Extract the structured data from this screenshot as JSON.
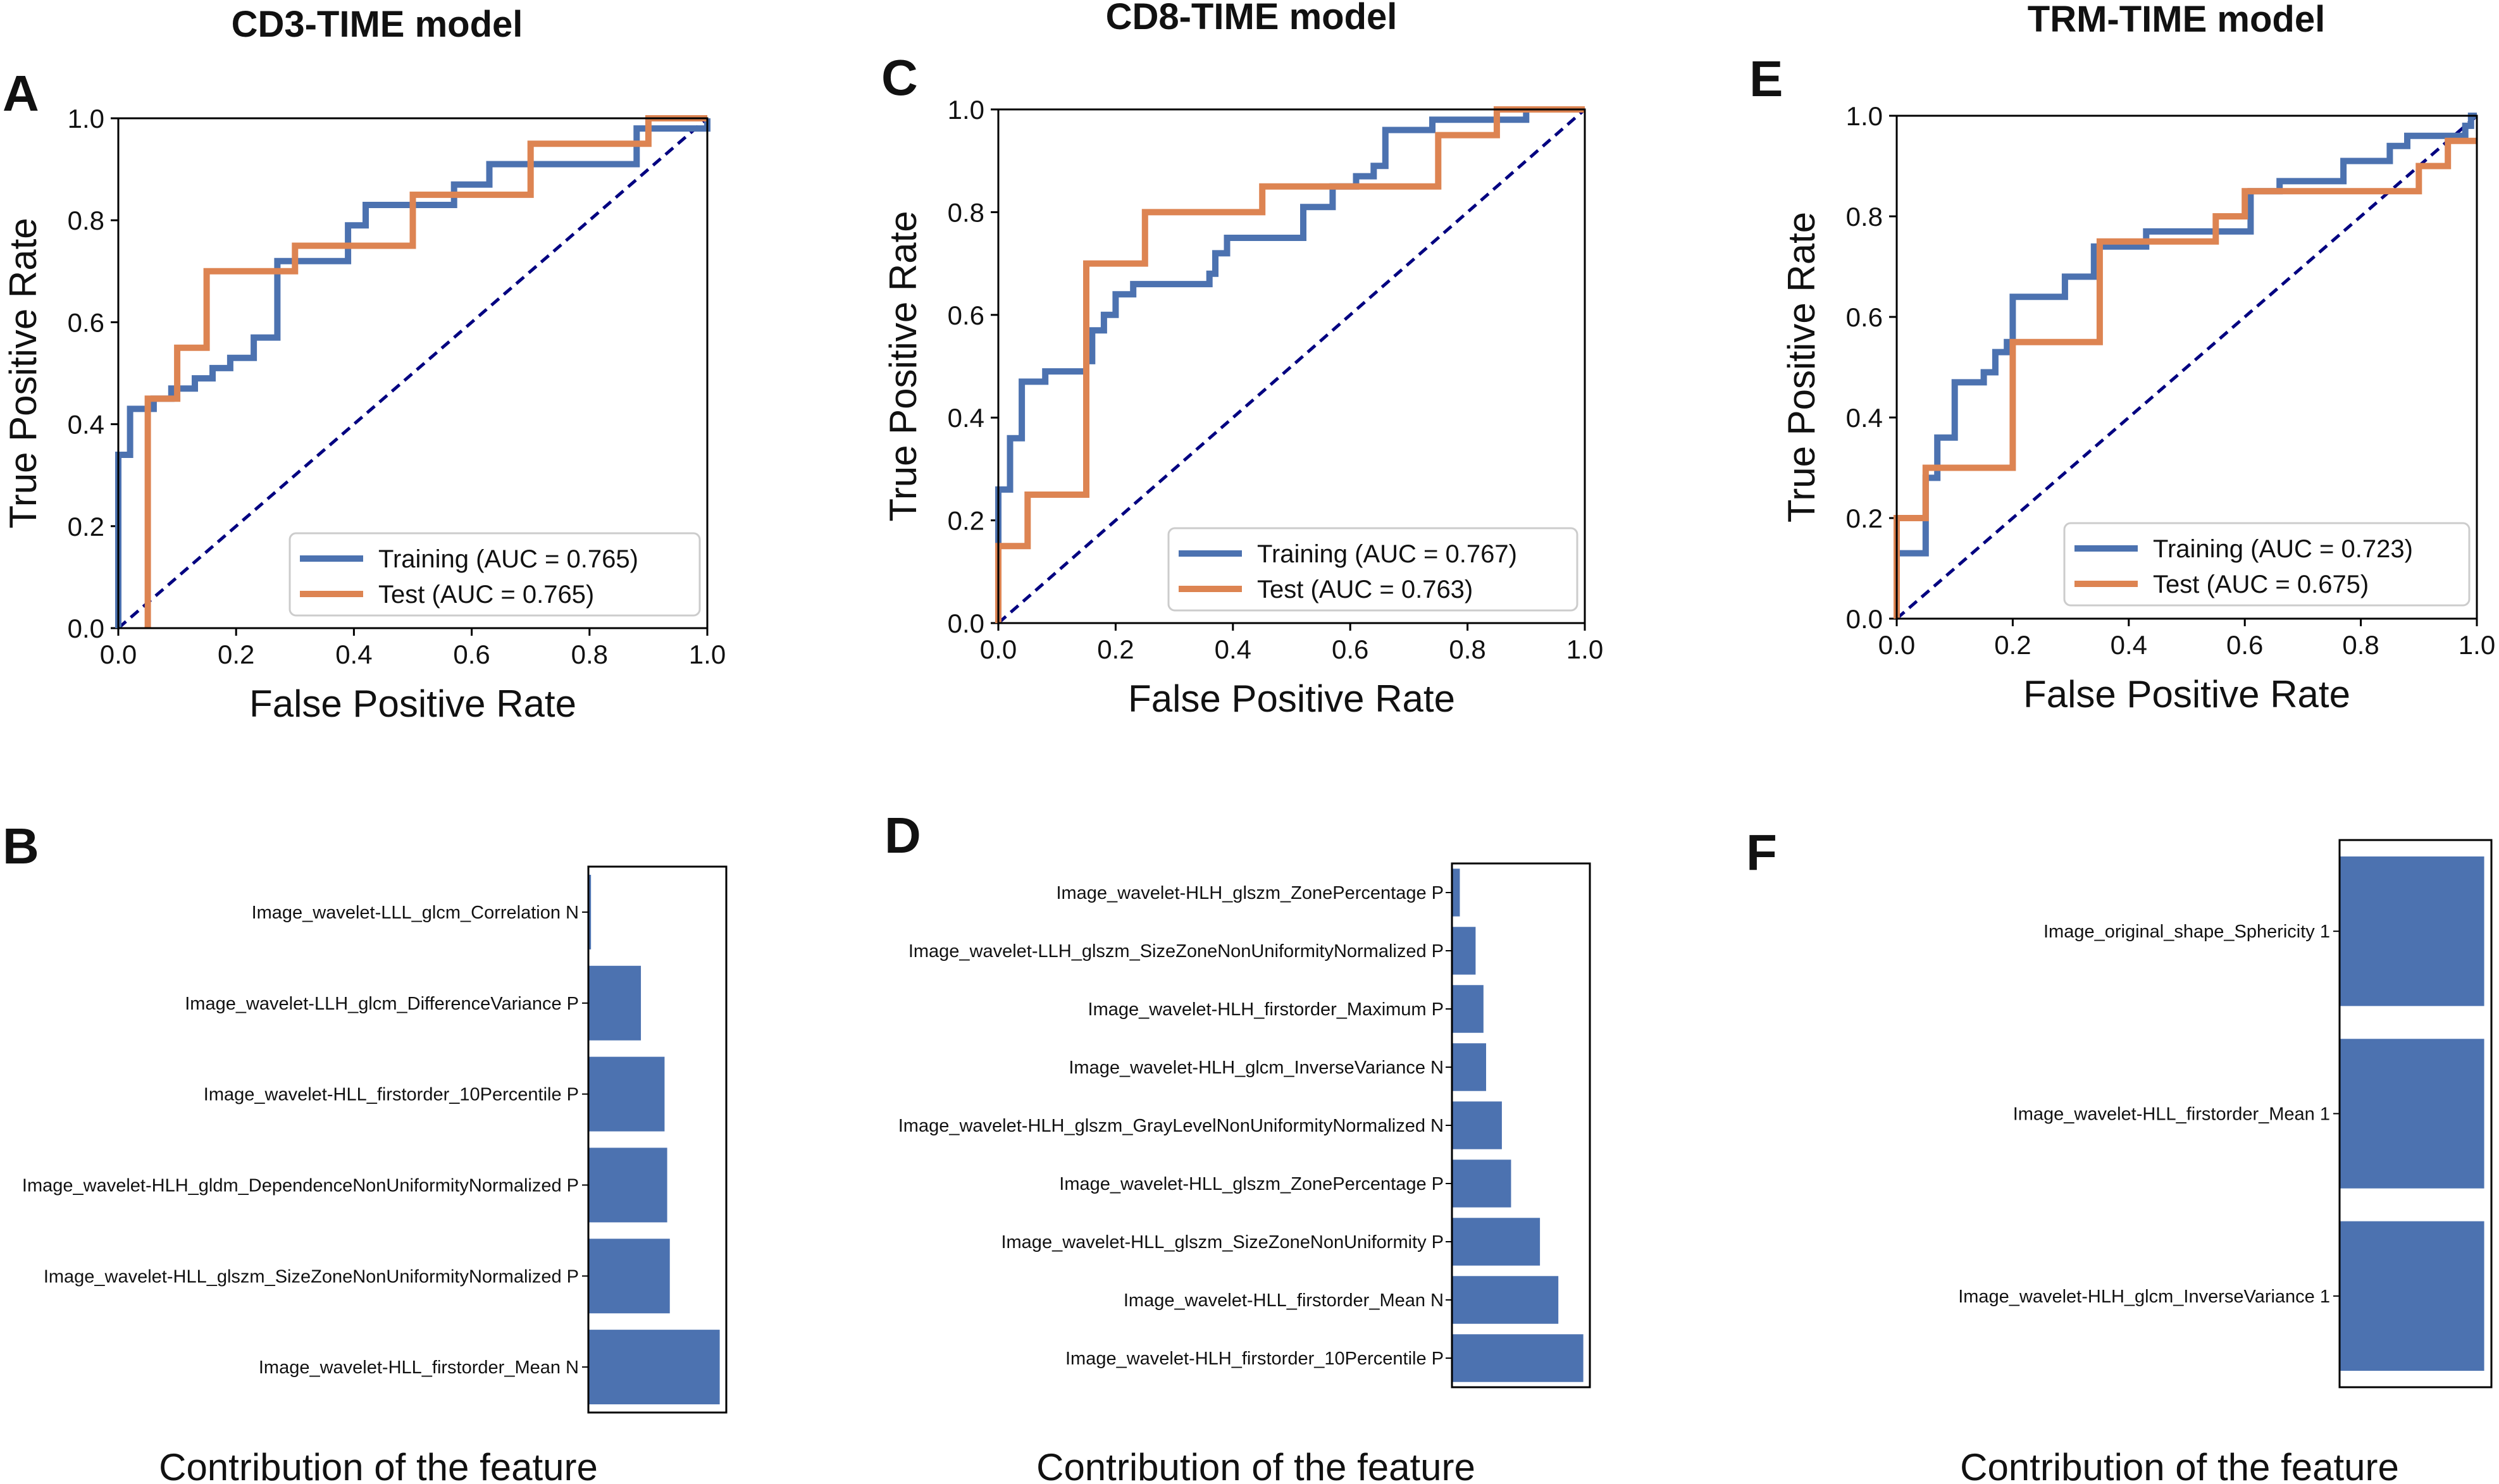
{
  "colors": {
    "training": "#4c72b0",
    "test": "#dd8452",
    "diagonal": "#000080",
    "bar": "#4c72b0"
  },
  "panels": {
    "A": {
      "letter": "A",
      "title": "CD3-TIME model"
    },
    "B": {
      "letter": "B"
    },
    "C": {
      "letter": "C",
      "title": "CD8-TIME model"
    },
    "D": {
      "letter": "D"
    },
    "E": {
      "letter": "E",
      "title": "TRM-TIME model"
    },
    "F": {
      "letter": "F"
    }
  },
  "chart_data": [
    {
      "id": "A",
      "type": "line",
      "title": "CD3-TIME model",
      "xlabel": "False Positive Rate",
      "ylabel": "True Positive Rate",
      "xlim": [
        0,
        1
      ],
      "ylim": [
        0,
        1
      ],
      "xticks": [
        "0.0",
        "0.2",
        "0.4",
        "0.6",
        "0.8",
        "1.0"
      ],
      "yticks": [
        "0.0",
        "0.2",
        "0.4",
        "0.6",
        "0.8",
        "1.0"
      ],
      "legend_position": "lower-right",
      "series": [
        {
          "name": "Training (AUC = 0.765)",
          "color": "#4c72b0",
          "points": [
            [
              0,
              0
            ],
            [
              0,
              0.34
            ],
            [
              0.02,
              0.34
            ],
            [
              0.02,
              0.43
            ],
            [
              0.06,
              0.43
            ],
            [
              0.06,
              0.45
            ],
            [
              0.09,
              0.45
            ],
            [
              0.09,
              0.47
            ],
            [
              0.13,
              0.47
            ],
            [
              0.13,
              0.49
            ],
            [
              0.16,
              0.49
            ],
            [
              0.16,
              0.51
            ],
            [
              0.19,
              0.51
            ],
            [
              0.19,
              0.53
            ],
            [
              0.23,
              0.53
            ],
            [
              0.23,
              0.57
            ],
            [
              0.27,
              0.57
            ],
            [
              0.27,
              0.72
            ],
            [
              0.39,
              0.72
            ],
            [
              0.39,
              0.79
            ],
            [
              0.42,
              0.79
            ],
            [
              0.42,
              0.83
            ],
            [
              0.57,
              0.83
            ],
            [
              0.57,
              0.87
            ],
            [
              0.63,
              0.87
            ],
            [
              0.63,
              0.91
            ],
            [
              0.88,
              0.91
            ],
            [
              0.88,
              0.98
            ],
            [
              1,
              0.98
            ],
            [
              1,
              1
            ]
          ]
        },
        {
          "name": "Test (AUC = 0.765)",
          "color": "#dd8452",
          "points": [
            [
              0.05,
              0
            ],
            [
              0.05,
              0.45
            ],
            [
              0.1,
              0.45
            ],
            [
              0.1,
              0.55
            ],
            [
              0.15,
              0.55
            ],
            [
              0.15,
              0.7
            ],
            [
              0.3,
              0.7
            ],
            [
              0.3,
              0.75
            ],
            [
              0.5,
              0.75
            ],
            [
              0.5,
              0.85
            ],
            [
              0.7,
              0.85
            ],
            [
              0.7,
              0.95
            ],
            [
              0.9,
              0.95
            ],
            [
              0.9,
              1
            ],
            [
              1,
              1
            ]
          ]
        }
      ]
    },
    {
      "id": "C",
      "type": "line",
      "title": "CD8-TIME model",
      "xlabel": "False Positive Rate",
      "ylabel": "True Positive Rate",
      "xlim": [
        0,
        1
      ],
      "ylim": [
        0,
        1
      ],
      "xticks": [
        "0.0",
        "0.2",
        "0.4",
        "0.6",
        "0.8",
        "1.0"
      ],
      "yticks": [
        "0.0",
        "0.2",
        "0.4",
        "0.6",
        "0.8",
        "1.0"
      ],
      "legend_position": "lower-right",
      "series": [
        {
          "name": "Training (AUC = 0.767)",
          "color": "#4c72b0",
          "points": [
            [
              0,
              0
            ],
            [
              0,
              0.26
            ],
            [
              0.02,
              0.26
            ],
            [
              0.02,
              0.36
            ],
            [
              0.04,
              0.36
            ],
            [
              0.04,
              0.47
            ],
            [
              0.08,
              0.47
            ],
            [
              0.08,
              0.49
            ],
            [
              0.15,
              0.49
            ],
            [
              0.15,
              0.51
            ],
            [
              0.16,
              0.51
            ],
            [
              0.16,
              0.57
            ],
            [
              0.18,
              0.57
            ],
            [
              0.18,
              0.6
            ],
            [
              0.2,
              0.6
            ],
            [
              0.2,
              0.64
            ],
            [
              0.23,
              0.64
            ],
            [
              0.23,
              0.66
            ],
            [
              0.36,
              0.66
            ],
            [
              0.36,
              0.68
            ],
            [
              0.37,
              0.68
            ],
            [
              0.37,
              0.72
            ],
            [
              0.39,
              0.72
            ],
            [
              0.39,
              0.75
            ],
            [
              0.52,
              0.75
            ],
            [
              0.52,
              0.81
            ],
            [
              0.57,
              0.81
            ],
            [
              0.57,
              0.85
            ],
            [
              0.61,
              0.85
            ],
            [
              0.61,
              0.87
            ],
            [
              0.64,
              0.87
            ],
            [
              0.64,
              0.89
            ],
            [
              0.66,
              0.89
            ],
            [
              0.66,
              0.96
            ],
            [
              0.74,
              0.96
            ],
            [
              0.74,
              0.98
            ],
            [
              0.9,
              0.98
            ],
            [
              0.9,
              1
            ],
            [
              1,
              1
            ]
          ]
        },
        {
          "name": "Test (AUC = 0.763)",
          "color": "#dd8452",
          "points": [
            [
              0,
              0
            ],
            [
              0,
              0.15
            ],
            [
              0.05,
              0.15
            ],
            [
              0.05,
              0.25
            ],
            [
              0.15,
              0.25
            ],
            [
              0.15,
              0.7
            ],
            [
              0.25,
              0.7
            ],
            [
              0.25,
              0.8
            ],
            [
              0.45,
              0.8
            ],
            [
              0.45,
              0.85
            ],
            [
              0.75,
              0.85
            ],
            [
              0.75,
              0.95
            ],
            [
              0.85,
              0.95
            ],
            [
              0.85,
              1
            ],
            [
              1,
              1
            ]
          ]
        }
      ]
    },
    {
      "id": "E",
      "type": "line",
      "title": "TRM-TIME model",
      "xlabel": "False Positive Rate",
      "ylabel": "True Positive Rate",
      "xlim": [
        0,
        1
      ],
      "ylim": [
        0,
        1
      ],
      "xticks": [
        "0.0",
        "0.2",
        "0.4",
        "0.6",
        "0.8",
        "1.0"
      ],
      "yticks": [
        "0.0",
        "0.2",
        "0.4",
        "0.6",
        "0.8",
        "1.0"
      ],
      "legend_position": "lower-right",
      "series": [
        {
          "name": "Training (AUC = 0.723)",
          "color": "#4c72b0",
          "points": [
            [
              0,
              0
            ],
            [
              0,
              0.13
            ],
            [
              0.05,
              0.13
            ],
            [
              0.05,
              0.28
            ],
            [
              0.07,
              0.28
            ],
            [
              0.07,
              0.36
            ],
            [
              0.1,
              0.36
            ],
            [
              0.1,
              0.47
            ],
            [
              0.15,
              0.47
            ],
            [
              0.15,
              0.49
            ],
            [
              0.17,
              0.49
            ],
            [
              0.17,
              0.53
            ],
            [
              0.19,
              0.53
            ],
            [
              0.19,
              0.55
            ],
            [
              0.2,
              0.55
            ],
            [
              0.2,
              0.64
            ],
            [
              0.29,
              0.64
            ],
            [
              0.29,
              0.68
            ],
            [
              0.34,
              0.68
            ],
            [
              0.34,
              0.74
            ],
            [
              0.43,
              0.74
            ],
            [
              0.43,
              0.77
            ],
            [
              0.61,
              0.77
            ],
            [
              0.61,
              0.85
            ],
            [
              0.66,
              0.85
            ],
            [
              0.66,
              0.87
            ],
            [
              0.77,
              0.87
            ],
            [
              0.77,
              0.91
            ],
            [
              0.85,
              0.91
            ],
            [
              0.85,
              0.94
            ],
            [
              0.88,
              0.94
            ],
            [
              0.88,
              0.96
            ],
            [
              0.98,
              0.96
            ],
            [
              0.98,
              0.98
            ],
            [
              0.99,
              0.98
            ],
            [
              0.99,
              1
            ],
            [
              1,
              1
            ]
          ]
        },
        {
          "name": "Test (AUC = 0.675)",
          "color": "#dd8452",
          "points": [
            [
              0,
              0
            ],
            [
              0,
              0.2
            ],
            [
              0.05,
              0.2
            ],
            [
              0.05,
              0.3
            ],
            [
              0.2,
              0.3
            ],
            [
              0.2,
              0.55
            ],
            [
              0.35,
              0.55
            ],
            [
              0.35,
              0.75
            ],
            [
              0.55,
              0.75
            ],
            [
              0.55,
              0.8
            ],
            [
              0.6,
              0.8
            ],
            [
              0.6,
              0.85
            ],
            [
              0.9,
              0.85
            ],
            [
              0.9,
              0.9
            ],
            [
              0.95,
              0.9
            ],
            [
              0.95,
              0.95
            ],
            [
              1,
              0.95
            ]
          ]
        }
      ]
    },
    {
      "id": "B",
      "type": "bar",
      "orientation": "horizontal",
      "xlabel": "Contribution of the feature",
      "categories": [
        "Image_wavelet-LLL_glcm_Correlation N",
        "Image_wavelet-LLH_glcm_DifferenceVariance P",
        "Image_wavelet-HLL_firstorder_10Percentile P",
        "Image_wavelet-HLH_gldm_DependenceNonUniformityNormalized P",
        "Image_wavelet-HLL_glszm_SizeZoneNonUniformityNormalized P",
        "Image_wavelet-HLL_firstorder_Mean N"
      ],
      "values": [
        0.02,
        0.4,
        0.58,
        0.6,
        0.62,
        1.0
      ],
      "xlim": [
        0,
        1.05
      ]
    },
    {
      "id": "D",
      "type": "bar",
      "orientation": "horizontal",
      "xlabel": "Contribution of the feature",
      "categories": [
        "Image_wavelet-HLH_glszm_ZonePercentage P",
        "Image_wavelet-LLH_glszm_SizeZoneNonUniformityNormalized P",
        "Image_wavelet-HLH_firstorder_Maximum P",
        "Image_wavelet-HLH_glcm_InverseVariance N",
        "Image_wavelet-HLH_glszm_GrayLevelNonUniformityNormalized N",
        "Image_wavelet-HLL_glszm_ZonePercentage P",
        "Image_wavelet-HLL_glszm_SizeZoneNonUniformity P",
        "Image_wavelet-HLL_firstorder_Mean N",
        "Image_wavelet-HLH_firstorder_10Percentile P"
      ],
      "values": [
        0.06,
        0.18,
        0.24,
        0.26,
        0.38,
        0.45,
        0.67,
        0.81,
        1.0
      ],
      "xlim": [
        0,
        1.05
      ]
    },
    {
      "id": "F",
      "type": "bar",
      "orientation": "horizontal",
      "xlabel": "Contribution of the feature",
      "categories": [
        "Image_original_shape_Sphericity 1",
        "Image_wavelet-HLL_firstorder_Mean 1",
        "Image_wavelet-HLH_glcm_InverseVariance 1"
      ],
      "values": [
        1.0,
        1.0,
        1.0
      ],
      "xlim": [
        0,
        1.05
      ]
    }
  ]
}
